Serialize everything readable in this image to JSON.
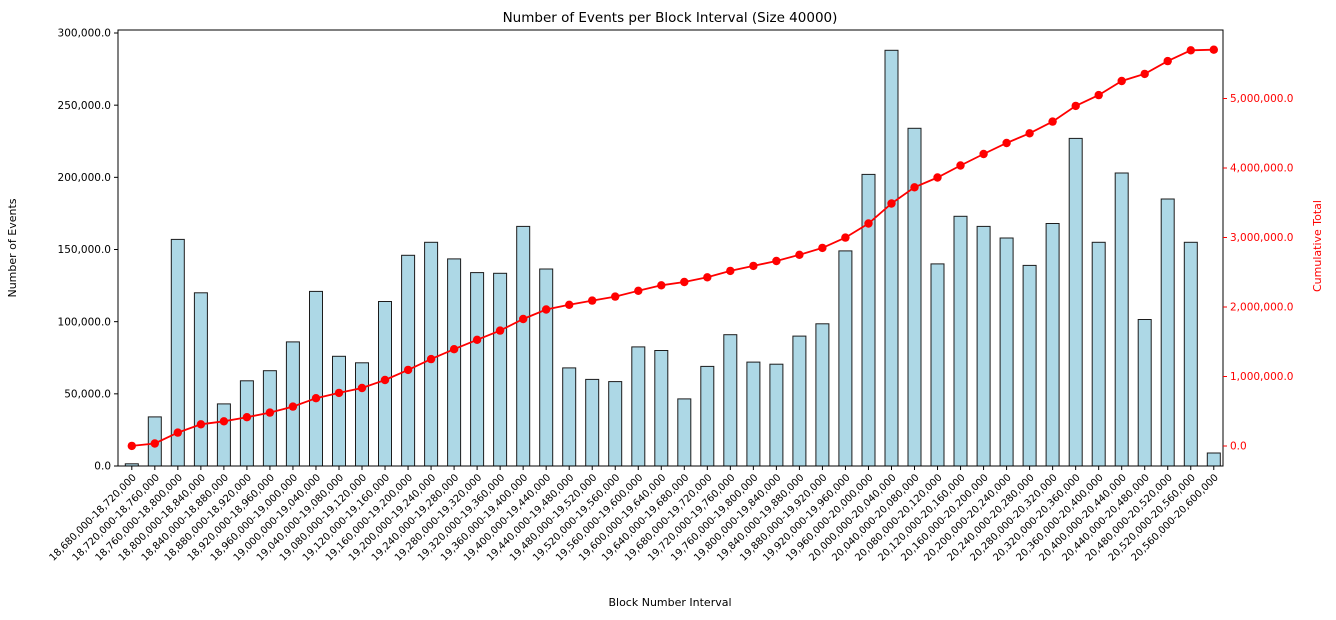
{
  "chart_data": {
    "type": "bar+line-dual-axis",
    "title": "Number of Events per Block Interval (Size 40000)",
    "xlabel": "Block Number Interval",
    "ylabel_left": "Number of Events",
    "ylabel_right": "Cumulative Total",
    "legend": "none",
    "grid": false,
    "interval_size": 40000,
    "colors": {
      "bar_fill": "#add8e6",
      "bar_edge": "#1c1c1c",
      "line": "#ff0000",
      "left_axis_text": "#000000",
      "right_axis_text": "#ff0000",
      "spine": "#000000"
    },
    "categories": [
      "18,680,000-18,720,000",
      "18,720,000-18,760,000",
      "18,760,000-18,800,000",
      "18,800,000-18,840,000",
      "18,840,000-18,880,000",
      "18,880,000-18,920,000",
      "18,920,000-18,960,000",
      "18,960,000-19,000,000",
      "19,000,000-19,040,000",
      "19,040,000-19,080,000",
      "19,080,000-19,120,000",
      "19,120,000-19,160,000",
      "19,160,000-19,200,000",
      "19,200,000-19,240,000",
      "19,240,000-19,280,000",
      "19,280,000-19,320,000",
      "19,320,000-19,360,000",
      "19,360,000-19,400,000",
      "19,400,000-19,440,000",
      "19,440,000-19,480,000",
      "19,480,000-19,520,000",
      "19,520,000-19,560,000",
      "19,560,000-19,600,000",
      "19,600,000-19,640,000",
      "19,640,000-19,680,000",
      "19,680,000-19,720,000",
      "19,720,000-19,760,000",
      "19,760,000-19,800,000",
      "19,800,000-19,840,000",
      "19,840,000-19,880,000",
      "19,880,000-19,920,000",
      "19,920,000-19,960,000",
      "19,960,000-20,000,000",
      "20,000,000-20,040,000",
      "20,040,000-20,080,000",
      "20,080,000-20,120,000",
      "20,120,000-20,160,000",
      "20,160,000-20,200,000",
      "20,200,000-20,240,000",
      "20,240,000-20,280,000",
      "20,280,000-20,320,000",
      "20,320,000-20,360,000",
      "20,360,000-20,400,000",
      "20,400,000-20,440,000",
      "20,440,000-20,480,000",
      "20,480,000-20,520,000",
      "20,520,000-20,560,000",
      "20,560,000-20,600,000"
    ],
    "series": [
      {
        "name": "Number of Events",
        "type": "bar",
        "axis": "left",
        "values": [
          1500,
          34000,
          157000,
          120000,
          43000,
          59000,
          66000,
          86000,
          121000,
          76000,
          71500,
          114000,
          146000,
          155000,
          143500,
          134000,
          133500,
          166000,
          136500,
          68000,
          60000,
          58500,
          82500,
          80000,
          46500,
          69000,
          91000,
          72000,
          70500,
          90000,
          98500,
          149000,
          202000,
          288000,
          234000,
          140000,
          173000,
          166000,
          158000,
          139000,
          168000,
          227000,
          155000,
          203000,
          101500,
          185000,
          155000,
          9000
        ]
      },
      {
        "name": "Cumulative Total",
        "type": "line",
        "axis": "right",
        "marker": "circle",
        "values": [
          1500,
          35500,
          192500,
          312500,
          355500,
          414500,
          480500,
          566500,
          687500,
          763500,
          835000,
          949000,
          1095000,
          1250000,
          1393500,
          1527500,
          1661000,
          1827000,
          1963500,
          2031500,
          2091500,
          2150000,
          2232500,
          2312500,
          2359000,
          2428000,
          2519000,
          2591000,
          2661500,
          2751500,
          2850000,
          2999000,
          3201000,
          3489000,
          3723000,
          3863000,
          4036000,
          4202000,
          4360000,
          4499000,
          4667000,
          4894000,
          5049000,
          5252000,
          5353500,
          5538500,
          5693500,
          5702500
        ]
      }
    ],
    "y_left_axis": {
      "tick_values": [
        0,
        50000,
        100000,
        150000,
        200000,
        250000,
        300000
      ],
      "tick_labels": [
        "0.0",
        "50,000.0",
        "100,000.0",
        "150,000.0",
        "200,000.0",
        "250,000.0",
        "300,000.0"
      ],
      "ylim": [
        0,
        302000
      ]
    },
    "y_right_axis": {
      "tick_values": [
        0,
        1000000,
        2000000,
        3000000,
        4000000,
        5000000
      ],
      "tick_labels": [
        "0.0",
        "1,000,000.0",
        "2,000,000.0",
        "3,000,000.0",
        "4,000,000.0",
        "5,000,000.0"
      ],
      "ylim": [
        -270000,
        5990000
      ]
    }
  }
}
